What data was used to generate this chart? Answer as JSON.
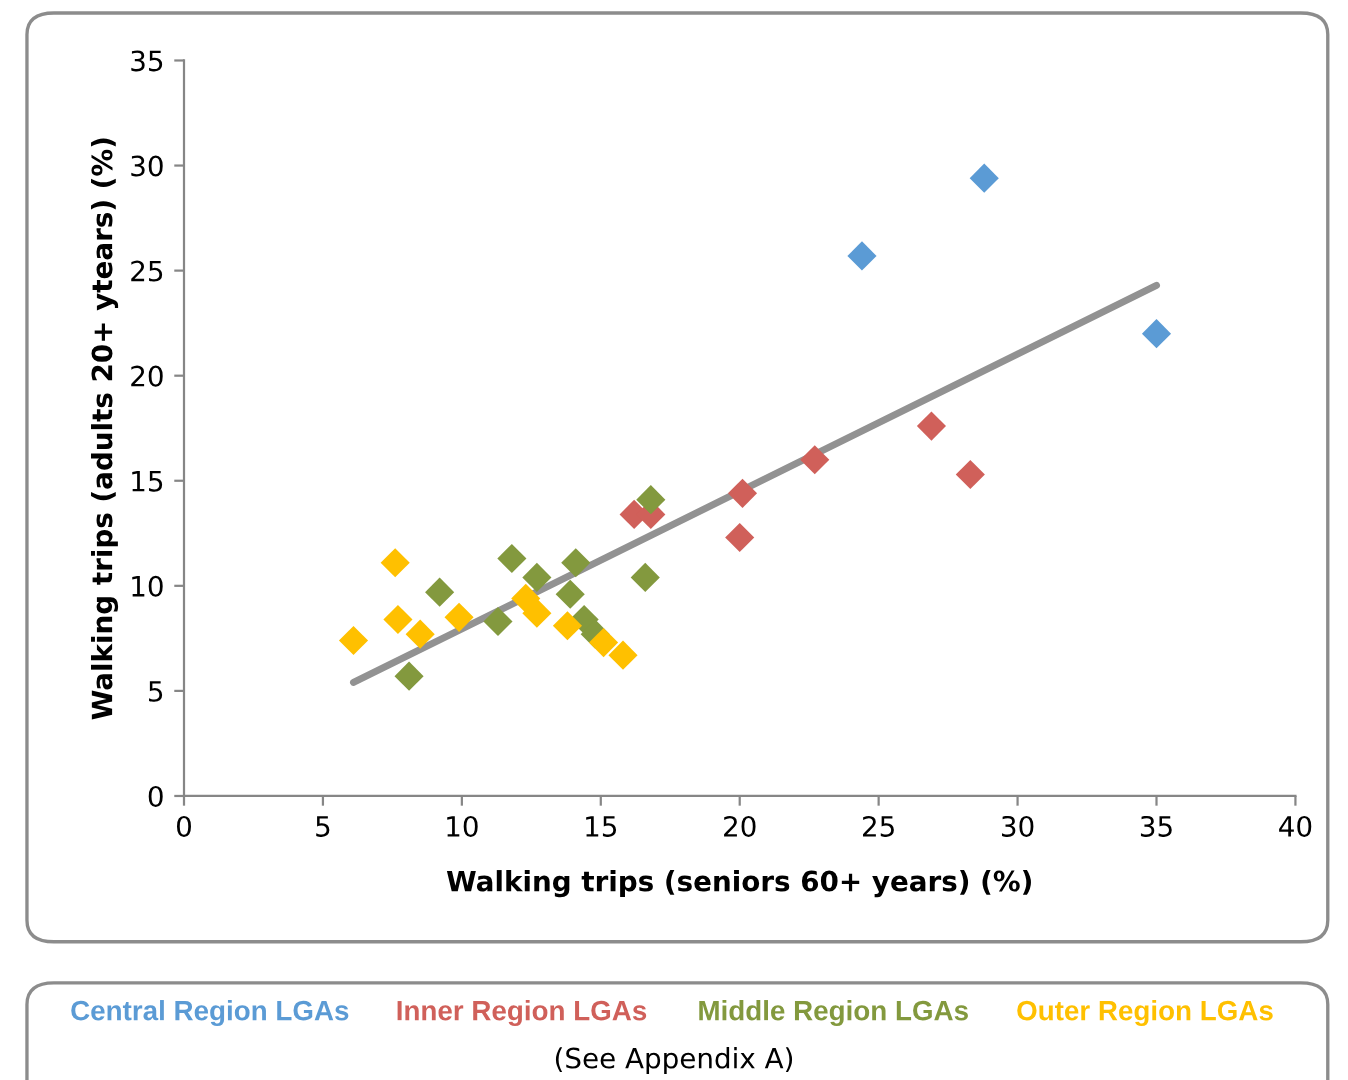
{
  "chart_data": {
    "type": "scatter",
    "xlabel": "Walking trips (seniors 60+ years) (%)",
    "ylabel": "Walking trips (adults 20+ ytears) (%)",
    "xlim": [
      0,
      40
    ],
    "xticks": [
      0,
      5,
      10,
      15,
      20,
      25,
      30,
      35,
      40
    ],
    "ylim": [
      0,
      35
    ],
    "yticks": [
      0,
      5,
      10,
      15,
      20,
      25,
      30,
      35
    ],
    "grid": false,
    "legend": "bottom",
    "marker": "diamond",
    "series": [
      {
        "name": "Central Region LGAs",
        "color": "#5b9bd5",
        "x": [
          24.4,
          28.8,
          35.0
        ],
        "values": [
          25.7,
          29.4,
          22.0
        ]
      },
      {
        "name": "Inner Region LGAs",
        "color": "#d0605a",
        "x": [
          16.2,
          16.8,
          20.1,
          20.0,
          22.7,
          26.9,
          28.3
        ],
        "values": [
          13.4,
          13.4,
          14.4,
          12.3,
          16.0,
          17.6,
          15.3
        ]
      },
      {
        "name": "Middle Region LGAs",
        "color": "#83993e",
        "x": [
          16.8,
          11.8,
          14.1,
          9.2,
          12.7,
          13.9,
          16.6,
          11.3,
          14.4,
          14.8,
          8.1
        ],
        "values": [
          14.1,
          11.3,
          11.1,
          9.7,
          10.4,
          9.6,
          10.4,
          8.3,
          8.4,
          7.7,
          5.7
        ]
      },
      {
        "name": "Outer Region LGAs",
        "color": "#ffc000",
        "x": [
          6.1,
          7.6,
          7.7,
          8.5,
          9.9,
          12.3,
          12.7,
          13.8,
          15.1,
          15.8
        ],
        "values": [
          7.4,
          11.1,
          8.4,
          7.7,
          8.5,
          9.4,
          8.7,
          8.1,
          7.3,
          6.7
        ]
      },
      {
        "type": "line",
        "color": "#929292",
        "x": [
          6.1,
          35.0
        ],
        "values": [
          5.4,
          24.3
        ],
        "marker": "none"
      }
    ],
    "annotations": [
      "(See Appendix A)"
    ]
  }
}
